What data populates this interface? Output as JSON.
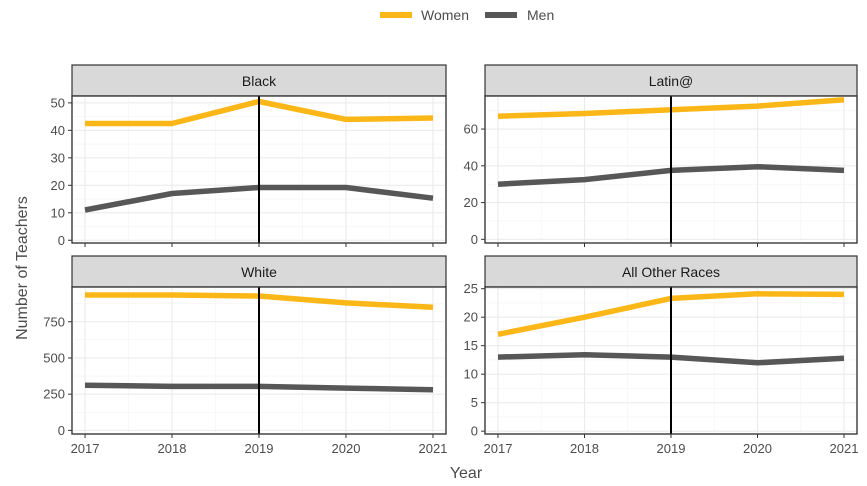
{
  "chart_data": {
    "type": "line",
    "xlabel": "Year",
    "ylabel": "Number of Teachers",
    "legend": {
      "position": "top",
      "entries": [
        {
          "name": "Women",
          "color": "#fbb718"
        },
        {
          "name": "Men",
          "color": "#575757"
        }
      ]
    },
    "reference_line_x": 2019,
    "x": [
      2017,
      2018,
      2019,
      2020,
      2021
    ],
    "xticks": [
      "2017",
      "2018",
      "2019",
      "2020",
      "2021"
    ],
    "panels": [
      {
        "title": "Black",
        "ylim": [
          -1,
          52.5
        ],
        "yticks": [
          0,
          10,
          20,
          30,
          40,
          50
        ],
        "series": [
          {
            "name": "Women",
            "values": [
              42.5,
              42.5,
              50.5,
              44,
              44.5
            ]
          },
          {
            "name": "Men",
            "values": [
              11,
              17,
              19.2,
              19.2,
              15.3
            ]
          }
        ]
      },
      {
        "title": "Latin@",
        "ylim": [
          -2,
          78
        ],
        "yticks": [
          0,
          20,
          40,
          60
        ],
        "series": [
          {
            "name": "Women",
            "values": [
              67,
              68.5,
              70.5,
              72.5,
              76
            ]
          },
          {
            "name": "Men",
            "values": [
              30,
              32.5,
              37.5,
              39.5,
              37.5
            ]
          }
        ]
      },
      {
        "title": "White",
        "ylim": [
          -25,
          990
        ],
        "yticks": [
          0,
          250,
          500,
          750
        ],
        "series": [
          {
            "name": "Women",
            "values": [
              935,
              935,
              928,
              880,
              850
            ]
          },
          {
            "name": "Men",
            "values": [
              312,
              304,
              304,
              292,
              280
            ]
          }
        ]
      },
      {
        "title": "All Other Races",
        "ylim": [
          -0.5,
          25.3
        ],
        "yticks": [
          0,
          5,
          10,
          15,
          20,
          25
        ],
        "series": [
          {
            "name": "Women",
            "values": [
              17,
              20,
              23.3,
              24.1,
              24
            ]
          },
          {
            "name": "Men",
            "values": [
              13,
              13.4,
              13,
              12,
              12.8
            ]
          }
        ]
      }
    ]
  }
}
